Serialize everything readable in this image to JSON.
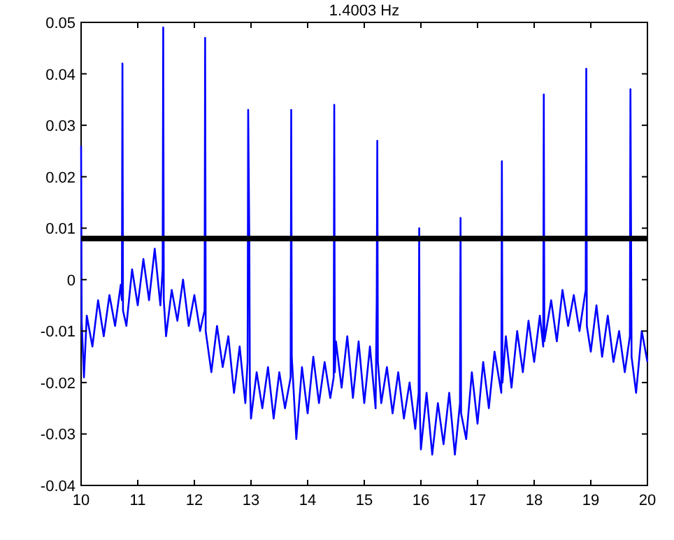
{
  "chart_data": {
    "type": "line",
    "title": "1.4003 Hz",
    "x": [
      10.0,
      10.01,
      10.05,
      10.1,
      10.2,
      10.3,
      10.4,
      10.5,
      10.6,
      10.7,
      10.72,
      10.73,
      10.74,
      10.8,
      10.9,
      11.0,
      11.1,
      11.2,
      11.3,
      11.4,
      11.44,
      11.45,
      11.46,
      11.5,
      11.6,
      11.7,
      11.8,
      11.9,
      12.0,
      12.1,
      12.18,
      12.19,
      12.2,
      12.3,
      12.4,
      12.5,
      12.6,
      12.7,
      12.8,
      12.9,
      12.94,
      12.95,
      12.97,
      12.98,
      13.0,
      13.1,
      13.2,
      13.3,
      13.4,
      13.5,
      13.6,
      13.7,
      13.71,
      13.72,
      13.8,
      13.9,
      14.0,
      14.1,
      14.2,
      14.3,
      14.4,
      14.46,
      14.47,
      14.48,
      14.5,
      14.6,
      14.7,
      14.8,
      14.9,
      15.0,
      15.1,
      15.2,
      15.22,
      15.23,
      15.24,
      15.3,
      15.4,
      15.5,
      15.6,
      15.7,
      15.8,
      15.9,
      15.96,
      15.97,
      15.98,
      16.0,
      16.1,
      16.2,
      16.3,
      16.4,
      16.5,
      16.6,
      16.69,
      16.7,
      16.71,
      16.8,
      16.9,
      17.0,
      17.1,
      17.2,
      17.3,
      17.42,
      17.43,
      17.44,
      17.5,
      17.6,
      17.7,
      17.8,
      17.9,
      18.0,
      18.1,
      18.16,
      18.17,
      18.18,
      18.3,
      18.4,
      18.5,
      18.6,
      18.7,
      18.8,
      18.91,
      18.92,
      18.93,
      19.0,
      19.1,
      19.2,
      19.3,
      19.4,
      19.5,
      19.6,
      19.69,
      19.7,
      19.72,
      19.8,
      19.9,
      20.0
    ],
    "series": [
      {
        "color": "#0000ff",
        "values": [
          0.026,
          -0.008,
          -0.019,
          -0.007,
          -0.013,
          -0.004,
          -0.011,
          -0.003,
          -0.009,
          -0.001,
          -0.004,
          0.042,
          -0.006,
          -0.009,
          0.002,
          -0.005,
          0.004,
          -0.004,
          0.006,
          -0.005,
          0.002,
          0.049,
          -0.004,
          -0.011,
          -0.002,
          -0.008,
          0.0,
          -0.009,
          -0.003,
          -0.01,
          -0.006,
          0.047,
          -0.01,
          -0.018,
          -0.009,
          -0.017,
          -0.011,
          -0.022,
          -0.013,
          -0.024,
          -0.016,
          0.033,
          0.008,
          -0.02,
          -0.027,
          -0.018,
          -0.025,
          -0.017,
          -0.027,
          -0.018,
          -0.025,
          -0.019,
          0.033,
          -0.015,
          -0.031,
          -0.017,
          -0.026,
          -0.015,
          -0.024,
          -0.016,
          -0.023,
          -0.019,
          0.034,
          -0.018,
          -0.012,
          -0.021,
          -0.011,
          -0.023,
          -0.012,
          -0.024,
          -0.013,
          -0.025,
          -0.004,
          0.027,
          -0.016,
          -0.024,
          -0.017,
          -0.026,
          -0.018,
          -0.027,
          -0.02,
          -0.029,
          -0.022,
          0.01,
          -0.025,
          -0.033,
          -0.022,
          -0.034,
          -0.024,
          -0.032,
          -0.022,
          -0.034,
          -0.024,
          0.012,
          -0.026,
          -0.031,
          -0.018,
          -0.028,
          -0.016,
          -0.025,
          -0.014,
          -0.022,
          0.023,
          -0.02,
          -0.011,
          -0.021,
          -0.01,
          -0.018,
          -0.008,
          -0.016,
          -0.007,
          -0.013,
          0.036,
          -0.012,
          -0.004,
          -0.012,
          -0.002,
          -0.009,
          -0.003,
          -0.01,
          -0.002,
          0.041,
          -0.009,
          -0.014,
          -0.005,
          -0.015,
          -0.007,
          -0.016,
          -0.01,
          -0.018,
          -0.011,
          0.037,
          -0.015,
          -0.022,
          -0.01,
          -0.016
        ]
      }
    ],
    "xlim": [
      10,
      20
    ],
    "xticks": [
      10,
      11,
      12,
      13,
      14,
      15,
      16,
      17,
      18,
      19,
      20
    ],
    "ylim": [
      -0.04,
      0.05
    ],
    "yticks": [
      -0.04,
      -0.03,
      -0.02,
      -0.01,
      0,
      0.01,
      0.02,
      0.03,
      0.04,
      0.05
    ],
    "ref_lines": [
      {
        "axis": "y",
        "value": 0.008,
        "color": "#000000"
      }
    ],
    "grid": false,
    "marker": "none",
    "line_style": "solid"
  }
}
